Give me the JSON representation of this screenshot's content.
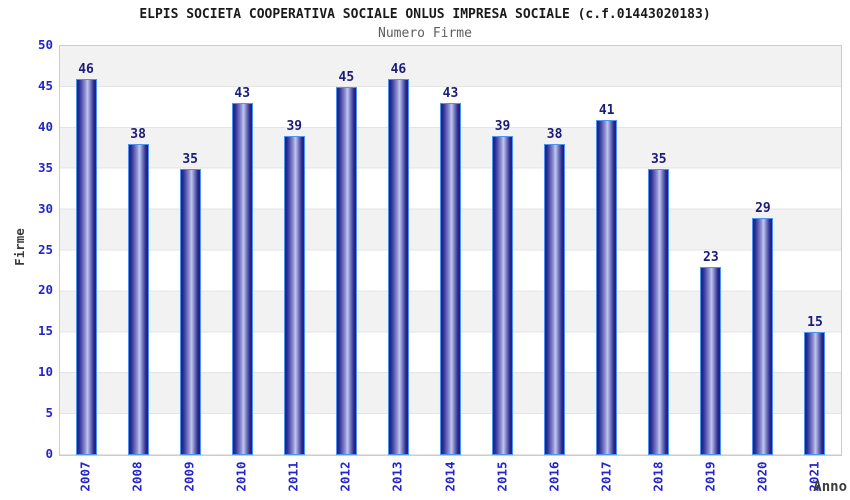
{
  "header": {
    "title": "ELPIS SOCIETA COOPERATIVA SOCIALE ONLUS IMPRESA SOCIALE (c.f.01443020183)",
    "subtitle": "Numero Firme"
  },
  "chart_data": {
    "type": "bar",
    "title": "ELPIS SOCIETA COOPERATIVA SOCIALE ONLUS IMPRESA SOCIALE (c.f.01443020183)",
    "subtitle": "Numero Firme",
    "xlabel": "Anno",
    "ylabel": "Firme",
    "categories": [
      "2007",
      "2008",
      "2009",
      "2010",
      "2011",
      "2012",
      "2013",
      "2014",
      "2015",
      "2016",
      "2017",
      "2018",
      "2019",
      "2020",
      "2021"
    ],
    "values": [
      46,
      38,
      35,
      43,
      39,
      45,
      46,
      43,
      39,
      38,
      41,
      35,
      23,
      29,
      15
    ],
    "ylim": [
      0,
      50
    ],
    "ytick_step": 5,
    "y_ticks": [
      0,
      5,
      10,
      15,
      20,
      25,
      30,
      35,
      40,
      45,
      50
    ],
    "grid": "horizontal gridlines every 5 with alternating gray/white bands",
    "legend": "none",
    "colors": {
      "bar_dark": "#1e1e7e",
      "bar_light": "#c4c8ee",
      "bar_outline": "#4d94f2",
      "tick_label": "#2424cc",
      "value_label": "#1c1c78",
      "axis_label": "#3c3c3c",
      "band_gray": "#f2f2f2",
      "band_white": "#ffffff",
      "plot_border": "#cccccc",
      "title_color": "#1a1a1a",
      "subtitle_color": "#5e5e5e"
    }
  }
}
